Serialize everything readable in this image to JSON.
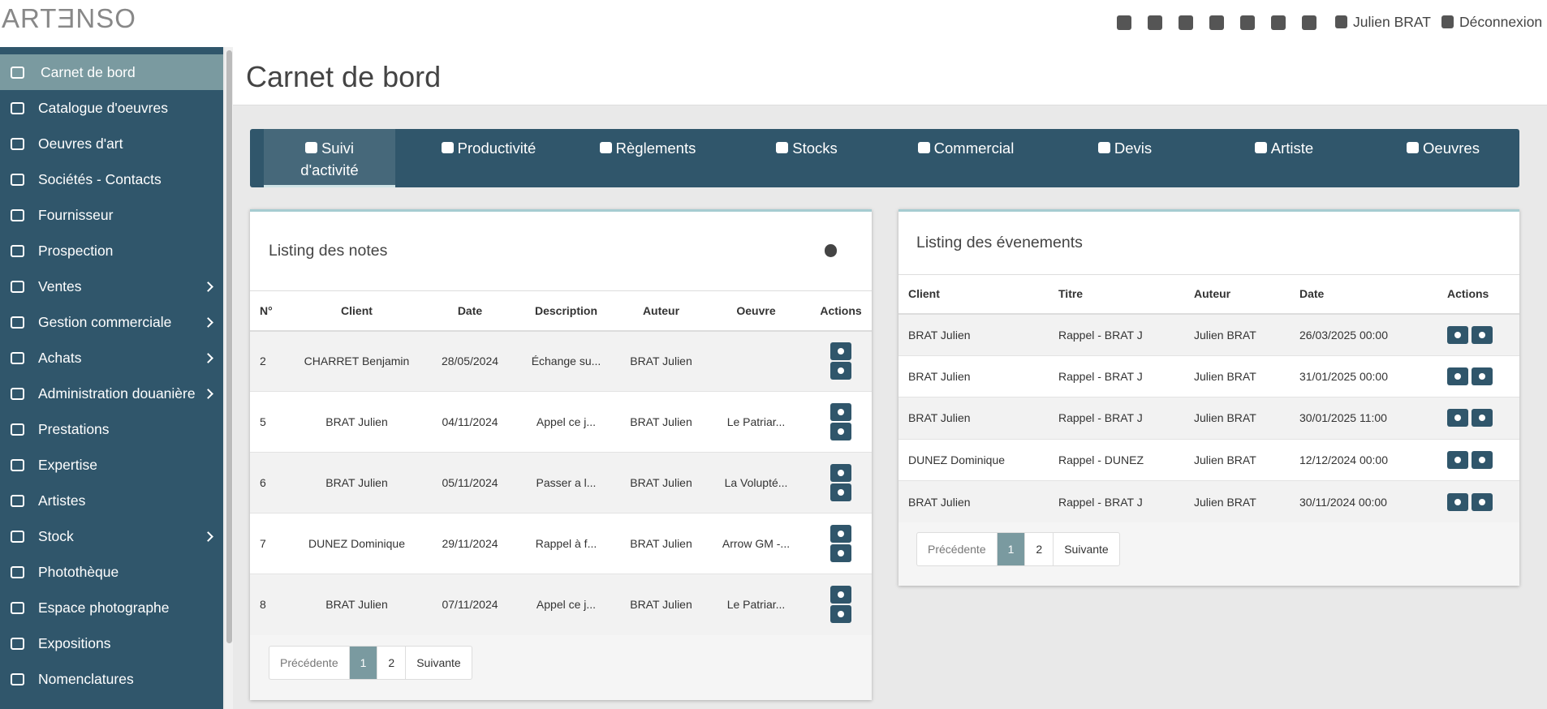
{
  "header": {
    "logo": "ARTƎNSO",
    "user": "Julien BRAT",
    "logout": "Déconnexion"
  },
  "sidebar": {
    "items": [
      {
        "label": "Carnet de bord",
        "active": true
      },
      {
        "label": "Catalogue d'oeuvres"
      },
      {
        "label": "Oeuvres d'art"
      },
      {
        "label": "Sociétés - Contacts"
      },
      {
        "label": "Fournisseur"
      },
      {
        "label": "Prospection"
      },
      {
        "label": "Ventes",
        "submenu": true
      },
      {
        "label": "Gestion commerciale",
        "submenu": true
      },
      {
        "label": "Achats",
        "submenu": true
      },
      {
        "label": "Administration douanière",
        "submenu": true
      },
      {
        "label": "Prestations"
      },
      {
        "label": "Expertise"
      },
      {
        "label": "Artistes"
      },
      {
        "label": "Stock",
        "submenu": true
      },
      {
        "label": "Photothèque"
      },
      {
        "label": "Espace photographe"
      },
      {
        "label": "Expositions"
      },
      {
        "label": "Nomenclatures"
      }
    ]
  },
  "page": {
    "title": "Carnet de bord"
  },
  "tabs": [
    {
      "label": "Suivi d'activité",
      "active": true
    },
    {
      "label": "Productivité"
    },
    {
      "label": "Règlements"
    },
    {
      "label": "Stocks"
    },
    {
      "label": "Commercial"
    },
    {
      "label": "Devis"
    },
    {
      "label": "Artiste"
    },
    {
      "label": "Oeuvres"
    }
  ],
  "notes": {
    "title": "Listing des notes",
    "columns": [
      "N°",
      "Client",
      "Date",
      "Description",
      "Auteur",
      "Oeuvre",
      "Actions"
    ],
    "rows": [
      [
        2,
        "CHARRET Benjamin",
        "28/05/2024",
        "Échange su...",
        "BRAT Julien",
        null
      ],
      [
        5,
        "BRAT Julien",
        "04/11/2024",
        "Appel ce j...",
        "BRAT Julien",
        "Le Patriar..."
      ],
      [
        6,
        "BRAT Julien",
        "05/11/2024",
        "Passer a l...",
        "BRAT Julien",
        "La Volupté..."
      ],
      [
        7,
        "DUNEZ Dominique",
        "29/11/2024",
        "Rappel à f...",
        "BRAT Julien",
        "Arrow GM -..."
      ],
      [
        8,
        "BRAT Julien",
        "07/11/2024",
        "Appel ce j...",
        "BRAT Julien",
        "Le Patriar..."
      ]
    ],
    "pagination": {
      "prev": "Précédente",
      "pages": [
        1,
        2
      ],
      "current": 1,
      "next": "Suivante"
    }
  },
  "events": {
    "title": "Listing des évenements",
    "columns": [
      "Client",
      "Titre",
      "Auteur",
      "Date",
      "Actions"
    ],
    "rows": [
      [
        "BRAT Julien",
        "Rappel - BRAT J",
        "Julien BRAT",
        "26/03/2025 00:00"
      ],
      [
        "BRAT Julien",
        "Rappel - BRAT J",
        "Julien BRAT",
        "31/01/2025 00:00"
      ],
      [
        "BRAT Julien",
        "Rappel - BRAT J",
        "Julien BRAT",
        "30/01/2025 11:00"
      ],
      [
        "DUNEZ Dominique",
        "Rappel - DUNEZ",
        "Julien BRAT",
        "12/12/2024 00:00"
      ],
      [
        "BRAT Julien",
        "Rappel - BRAT J",
        "Julien BRAT",
        "30/11/2024 00:00"
      ]
    ],
    "pagination": {
      "prev": "Précédente",
      "pages": [
        1,
        2
      ],
      "current": 1,
      "next": "Suivante"
    }
  }
}
